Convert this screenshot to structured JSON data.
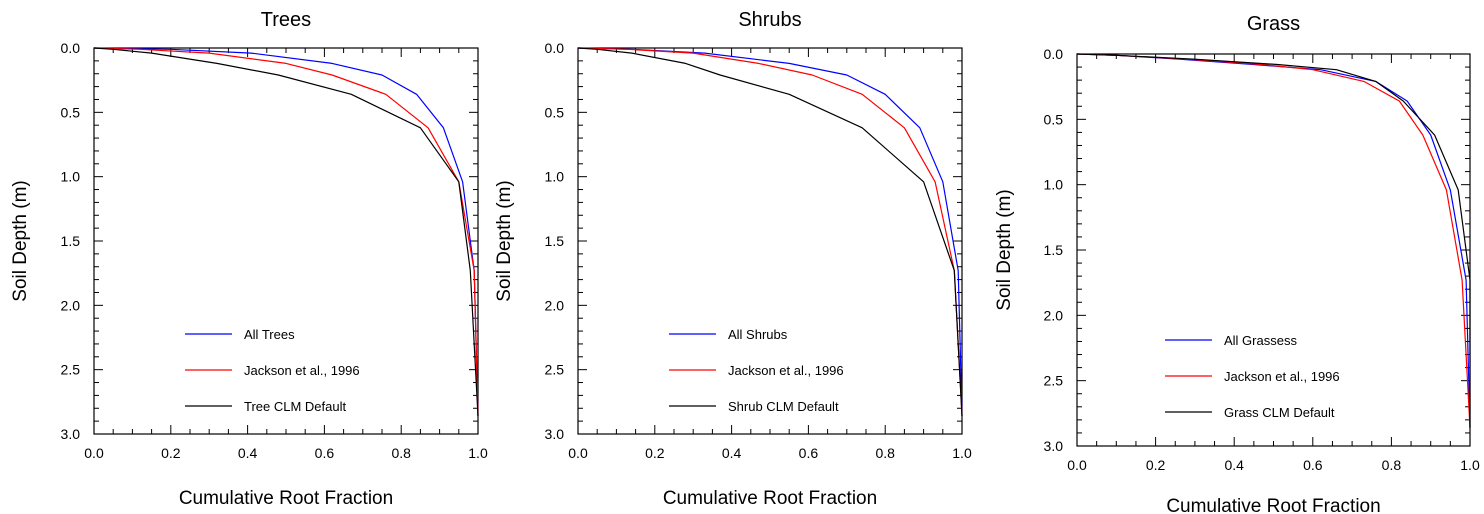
{
  "chart_data": [
    {
      "type": "line",
      "title": "Trees",
      "xlabel": "Cumulative Root Fraction",
      "ylabel": "Soil Depth (m)",
      "xlim": [
        0.0,
        1.0
      ],
      "ylim": [
        0.0,
        3.0
      ],
      "y_inverted": true,
      "x_ticks": [
        "0.0",
        "0.2",
        "0.4",
        "0.6",
        "0.8",
        "1.0"
      ],
      "y_ticks": [
        "0.0",
        "0.5",
        "1.0",
        "1.5",
        "2.0",
        "2.5",
        "3.0"
      ],
      "grid": false,
      "legend_position": "bottom-center",
      "series": [
        {
          "name": "All Trees",
          "color": "#0000ff",
          "x": [
            0.0,
            0.2,
            0.41,
            0.62,
            0.75,
            0.84,
            0.91,
            0.96,
            0.99,
            1.0
          ],
          "y": [
            0.0,
            0.01,
            0.04,
            0.12,
            0.21,
            0.36,
            0.62,
            1.04,
            1.73,
            2.86
          ]
        },
        {
          "name": "Jackson et al., 1996",
          "color": "#ff0000",
          "x": [
            0.0,
            0.12,
            0.3,
            0.5,
            0.62,
            0.76,
            0.87,
            0.95,
            0.99,
            1.0
          ],
          "y": [
            0.0,
            0.01,
            0.04,
            0.12,
            0.21,
            0.36,
            0.62,
            1.04,
            1.73,
            2.86
          ]
        },
        {
          "name": "Tree CLM Default",
          "color": "#000000",
          "x": [
            0.0,
            0.05,
            0.15,
            0.32,
            0.48,
            0.67,
            0.85,
            0.95,
            0.98,
            1.0
          ],
          "y": [
            0.0,
            0.01,
            0.04,
            0.12,
            0.21,
            0.36,
            0.62,
            1.04,
            1.73,
            2.86
          ]
        }
      ]
    },
    {
      "type": "line",
      "title": "Shrubs",
      "xlabel": "Cumulative Root Fraction",
      "ylabel": "Soil Depth (m)",
      "xlim": [
        0.0,
        1.0
      ],
      "ylim": [
        0.0,
        3.0
      ],
      "y_inverted": true,
      "x_ticks": [
        "0.0",
        "0.2",
        "0.4",
        "0.6",
        "0.8",
        "1.0"
      ],
      "y_ticks": [
        "0.0",
        "0.5",
        "1.0",
        "1.5",
        "2.0",
        "2.5",
        "3.0"
      ],
      "grid": false,
      "legend_position": "bottom-center",
      "series": [
        {
          "name": "All Shrubs",
          "color": "#0000ff",
          "x": [
            0.0,
            0.14,
            0.33,
            0.55,
            0.7,
            0.8,
            0.89,
            0.95,
            0.99,
            1.0
          ],
          "y": [
            0.0,
            0.01,
            0.04,
            0.12,
            0.21,
            0.36,
            0.62,
            1.04,
            1.73,
            2.86
          ]
        },
        {
          "name": "Jackson et al., 1996",
          "color": "#ff0000",
          "x": [
            0.0,
            0.13,
            0.3,
            0.47,
            0.61,
            0.74,
            0.85,
            0.93,
            0.98,
            1.0
          ],
          "y": [
            0.0,
            0.01,
            0.04,
            0.12,
            0.21,
            0.36,
            0.62,
            1.04,
            1.73,
            2.86
          ]
        },
        {
          "name": "Shrub CLM Default",
          "color": "#000000",
          "x": [
            0.0,
            0.05,
            0.14,
            0.28,
            0.37,
            0.55,
            0.74,
            0.9,
            0.98,
            1.0
          ],
          "y": [
            0.0,
            0.01,
            0.04,
            0.12,
            0.21,
            0.36,
            0.62,
            1.04,
            1.73,
            2.86
          ]
        }
      ]
    },
    {
      "type": "line",
      "title": "Grass",
      "xlabel": "Cumulative Root Fraction",
      "ylabel": "Soil Depth (m)",
      "xlim": [
        0.0,
        1.0
      ],
      "ylim": [
        0.0,
        3.0
      ],
      "y_inverted": true,
      "x_ticks": [
        "0.0",
        "0.2",
        "0.4",
        "0.6",
        "0.8",
        "1.0"
      ],
      "y_ticks": [
        "0.0",
        "0.5",
        "1.0",
        "1.5",
        "2.0",
        "2.5",
        "3.0"
      ],
      "grid": false,
      "legend_position": "bottom-center",
      "series": [
        {
          "name": "All Grassess",
          "color": "#0000ff",
          "x": [
            0.0,
            0.1,
            0.26,
            0.45,
            0.62,
            0.76,
            0.84,
            0.9,
            0.95,
            0.99,
            1.0
          ],
          "y": [
            0.0,
            0.01,
            0.04,
            0.08,
            0.12,
            0.21,
            0.36,
            0.62,
            1.04,
            1.73,
            2.86
          ]
        },
        {
          "name": "Jackson et al., 1996",
          "color": "#ff0000",
          "x": [
            0.0,
            0.1,
            0.28,
            0.47,
            0.6,
            0.73,
            0.82,
            0.88,
            0.94,
            0.98,
            1.0
          ],
          "y": [
            0.0,
            0.01,
            0.04,
            0.08,
            0.12,
            0.21,
            0.36,
            0.62,
            1.04,
            1.73,
            2.86
          ]
        },
        {
          "name": "Grass CLM Default",
          "color": "#000000",
          "x": [
            0.0,
            0.1,
            0.3,
            0.51,
            0.66,
            0.76,
            0.83,
            0.91,
            0.97,
            1.0,
            1.0
          ],
          "y": [
            0.0,
            0.01,
            0.04,
            0.08,
            0.12,
            0.21,
            0.36,
            0.62,
            1.04,
            1.73,
            2.86
          ]
        }
      ]
    }
  ]
}
